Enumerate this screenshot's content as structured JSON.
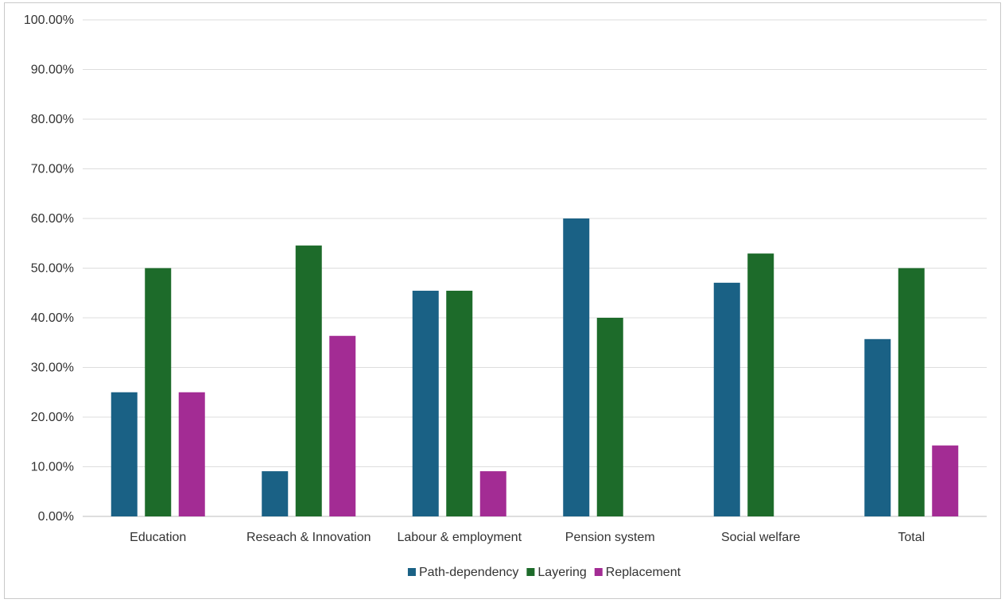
{
  "chart_data": {
    "type": "bar",
    "title": "",
    "xlabel": "",
    "ylabel": "",
    "ylim": [
      0,
      100
    ],
    "yticks": [
      0,
      10,
      20,
      30,
      40,
      50,
      60,
      70,
      80,
      90,
      100
    ],
    "ytick_format": "percent_2dp",
    "grid": true,
    "legend_position": "bottom",
    "categories": [
      "Education",
      "Reseach & Innovation",
      "Labour & employment",
      "Pension system",
      "Social welfare",
      "Total"
    ],
    "series": [
      {
        "name": "Path-dependency",
        "color": "#1a6185",
        "values": [
          25.0,
          9.1,
          45.45,
          60.0,
          47.06,
          35.71
        ]
      },
      {
        "name": "Layering",
        "color": "#1d6b2a",
        "values": [
          50.0,
          54.55,
          45.45,
          40.0,
          52.94,
          50.0
        ]
      },
      {
        "name": "Replacement",
        "color": "#a32c94",
        "values": [
          25.0,
          36.36,
          9.1,
          0,
          0,
          14.29
        ]
      }
    ]
  }
}
